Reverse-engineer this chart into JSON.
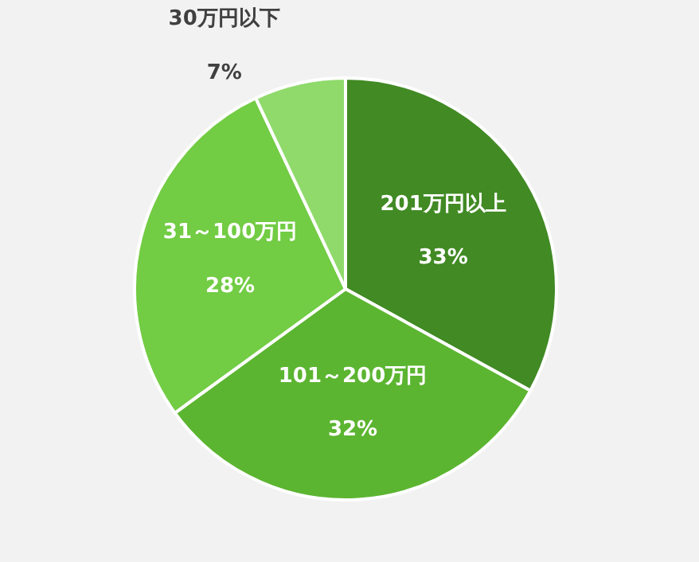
{
  "chart_data": {
    "type": "pie",
    "categories": [
      "201万円以上",
      "101～200万円",
      "31～100万円",
      "30万円以下"
    ],
    "values": [
      33,
      32,
      28,
      7
    ],
    "colors": [
      "#418a24",
      "#5cb531",
      "#72cc44",
      "#8fda6b"
    ],
    "value_labels": [
      "33%",
      "32%",
      "28%",
      "7%"
    ],
    "legend": false
  }
}
